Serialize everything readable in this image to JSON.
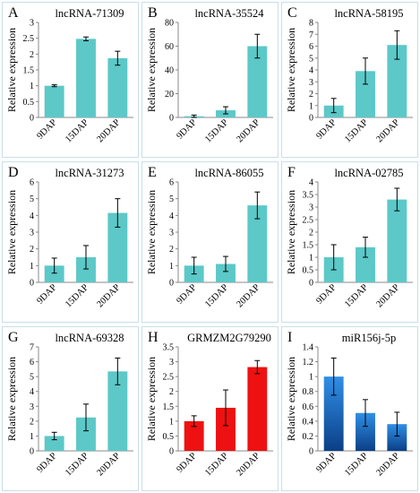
{
  "colors": {
    "teal": "#5cc8c8",
    "red": "#ee1111",
    "blue_top": "#2f8fe6",
    "blue_bottom": "#0b3f86",
    "panel_border": "#c9dfe8"
  },
  "chart_data": [
    {
      "type": "bar",
      "letter": "A",
      "title": "lncRNA-71309",
      "ylabel": "Relative expression",
      "categories": [
        "9DAP",
        "15DAP",
        "20DAP"
      ],
      "values": [
        1.0,
        2.48,
        1.87
      ],
      "errors": [
        0.03,
        0.06,
        0.22
      ],
      "ylim": [
        0,
        3
      ],
      "yticks": [
        0,
        0.5,
        1,
        1.5,
        2,
        2.5,
        3
      ],
      "ytick_labels": [
        "0",
        "0.5",
        "1",
        "1.5",
        "2",
        "2.5",
        "3"
      ],
      "color": "teal"
    },
    {
      "type": "bar",
      "letter": "B",
      "title": "lncRNA-35524",
      "ylabel": "Relative expression",
      "categories": [
        "9DAP",
        "15DAP",
        "20DAP"
      ],
      "values": [
        1.0,
        6.0,
        60.0
      ],
      "errors": [
        1.0,
        3.0,
        10.0
      ],
      "ylim": [
        0,
        80
      ],
      "yticks": [
        0,
        20,
        40,
        60,
        80
      ],
      "ytick_labels": [
        "0",
        "20",
        "40",
        "60",
        "80"
      ],
      "color": "teal"
    },
    {
      "type": "bar",
      "letter": "C",
      "title": "lncRNA-58195",
      "ylabel": "Relative expression",
      "categories": [
        "9DAP",
        "15DAP",
        "20DAP"
      ],
      "values": [
        1.0,
        3.9,
        6.1
      ],
      "errors": [
        0.6,
        1.1,
        1.2
      ],
      "ylim": [
        0,
        8
      ],
      "yticks": [
        0,
        1,
        2,
        3,
        4,
        5,
        6,
        7,
        8
      ],
      "ytick_labels": [
        "0",
        "1",
        "2",
        "3",
        "4",
        "5",
        "6",
        "7",
        "8"
      ],
      "color": "teal"
    },
    {
      "type": "bar",
      "letter": "D",
      "title": "lncRNA-31273",
      "ylabel": "Relative expression",
      "categories": [
        "9DAP",
        "15DAP",
        "20DAP"
      ],
      "values": [
        1.0,
        1.5,
        4.15
      ],
      "errors": [
        0.45,
        0.7,
        0.85
      ],
      "ylim": [
        0,
        6
      ],
      "yticks": [
        0,
        1,
        2,
        3,
        4,
        5,
        6
      ],
      "ytick_labels": [
        "0",
        "1",
        "2",
        "3",
        "4",
        "5",
        "6"
      ],
      "color": "teal"
    },
    {
      "type": "bar",
      "letter": "E",
      "title": "lncRNA-86055",
      "ylabel": "Relative expression",
      "categories": [
        "9DAP",
        "15DAP",
        "20DAP"
      ],
      "values": [
        1.0,
        1.1,
        4.6
      ],
      "errors": [
        0.5,
        0.45,
        0.8
      ],
      "ylim": [
        0,
        6
      ],
      "yticks": [
        0,
        1,
        2,
        3,
        4,
        5,
        6
      ],
      "ytick_labels": [
        "0",
        "1",
        "2",
        "3",
        "4",
        "5",
        "6"
      ],
      "color": "teal"
    },
    {
      "type": "bar",
      "letter": "F",
      "title": "lncRNA-02785",
      "ylabel": "Relative expression",
      "categories": [
        "9DAP",
        "15DAP",
        "20DAP"
      ],
      "values": [
        1.0,
        1.4,
        3.3
      ],
      "errors": [
        0.5,
        0.4,
        0.45
      ],
      "ylim": [
        0,
        4
      ],
      "yticks": [
        0,
        0.5,
        1,
        1.5,
        2,
        2.5,
        3,
        3.5,
        4
      ],
      "ytick_labels": [
        "0",
        "0.5",
        "1",
        "1.5",
        "2",
        "2.5",
        "3",
        "3.5",
        "4"
      ],
      "color": "teal"
    },
    {
      "type": "bar",
      "letter": "G",
      "title": "lncRNA-69328",
      "ylabel": "Relative expression",
      "categories": [
        "9DAP",
        "15DAP",
        "20DAP"
      ],
      "values": [
        1.0,
        2.25,
        5.35
      ],
      "errors": [
        0.25,
        0.9,
        0.9
      ],
      "ylim": [
        0,
        7
      ],
      "yticks": [
        0,
        1,
        2,
        3,
        4,
        5,
        6,
        7
      ],
      "ytick_labels": [
        "0",
        "1",
        "2",
        "3",
        "4",
        "5",
        "6",
        "7"
      ],
      "color": "teal"
    },
    {
      "type": "bar",
      "letter": "H",
      "title": "GRMZM2G79290",
      "ylabel": "Relative expression",
      "categories": [
        "9DAP",
        "15DAP",
        "20DAP"
      ],
      "values": [
        1.0,
        1.45,
        2.82
      ],
      "errors": [
        0.18,
        0.6,
        0.22
      ],
      "ylim": [
        0,
        3.5
      ],
      "yticks": [
        0,
        0.5,
        1,
        1.5,
        2,
        2.5,
        3,
        3.5
      ],
      "ytick_labels": [
        "0",
        "0.5",
        "1",
        "1.5",
        "2",
        "2.5",
        "3",
        "3.5"
      ],
      "color": "red"
    },
    {
      "type": "bar",
      "letter": "I",
      "title": "miR156j-5p",
      "ylabel": "Relative expression",
      "categories": [
        "9DAP",
        "15DAP",
        "20DAP"
      ],
      "values": [
        1.0,
        0.51,
        0.36
      ],
      "errors": [
        0.25,
        0.18,
        0.16
      ],
      "ylim": [
        0,
        1.4
      ],
      "yticks": [
        0,
        0.2,
        0.4,
        0.6,
        0.8,
        1,
        1.2,
        1.4
      ],
      "ytick_labels": [
        "0",
        "0.2",
        "0.4",
        "0.6",
        "0.8",
        "1",
        "1.2",
        "1.4"
      ],
      "color": "blue"
    }
  ]
}
